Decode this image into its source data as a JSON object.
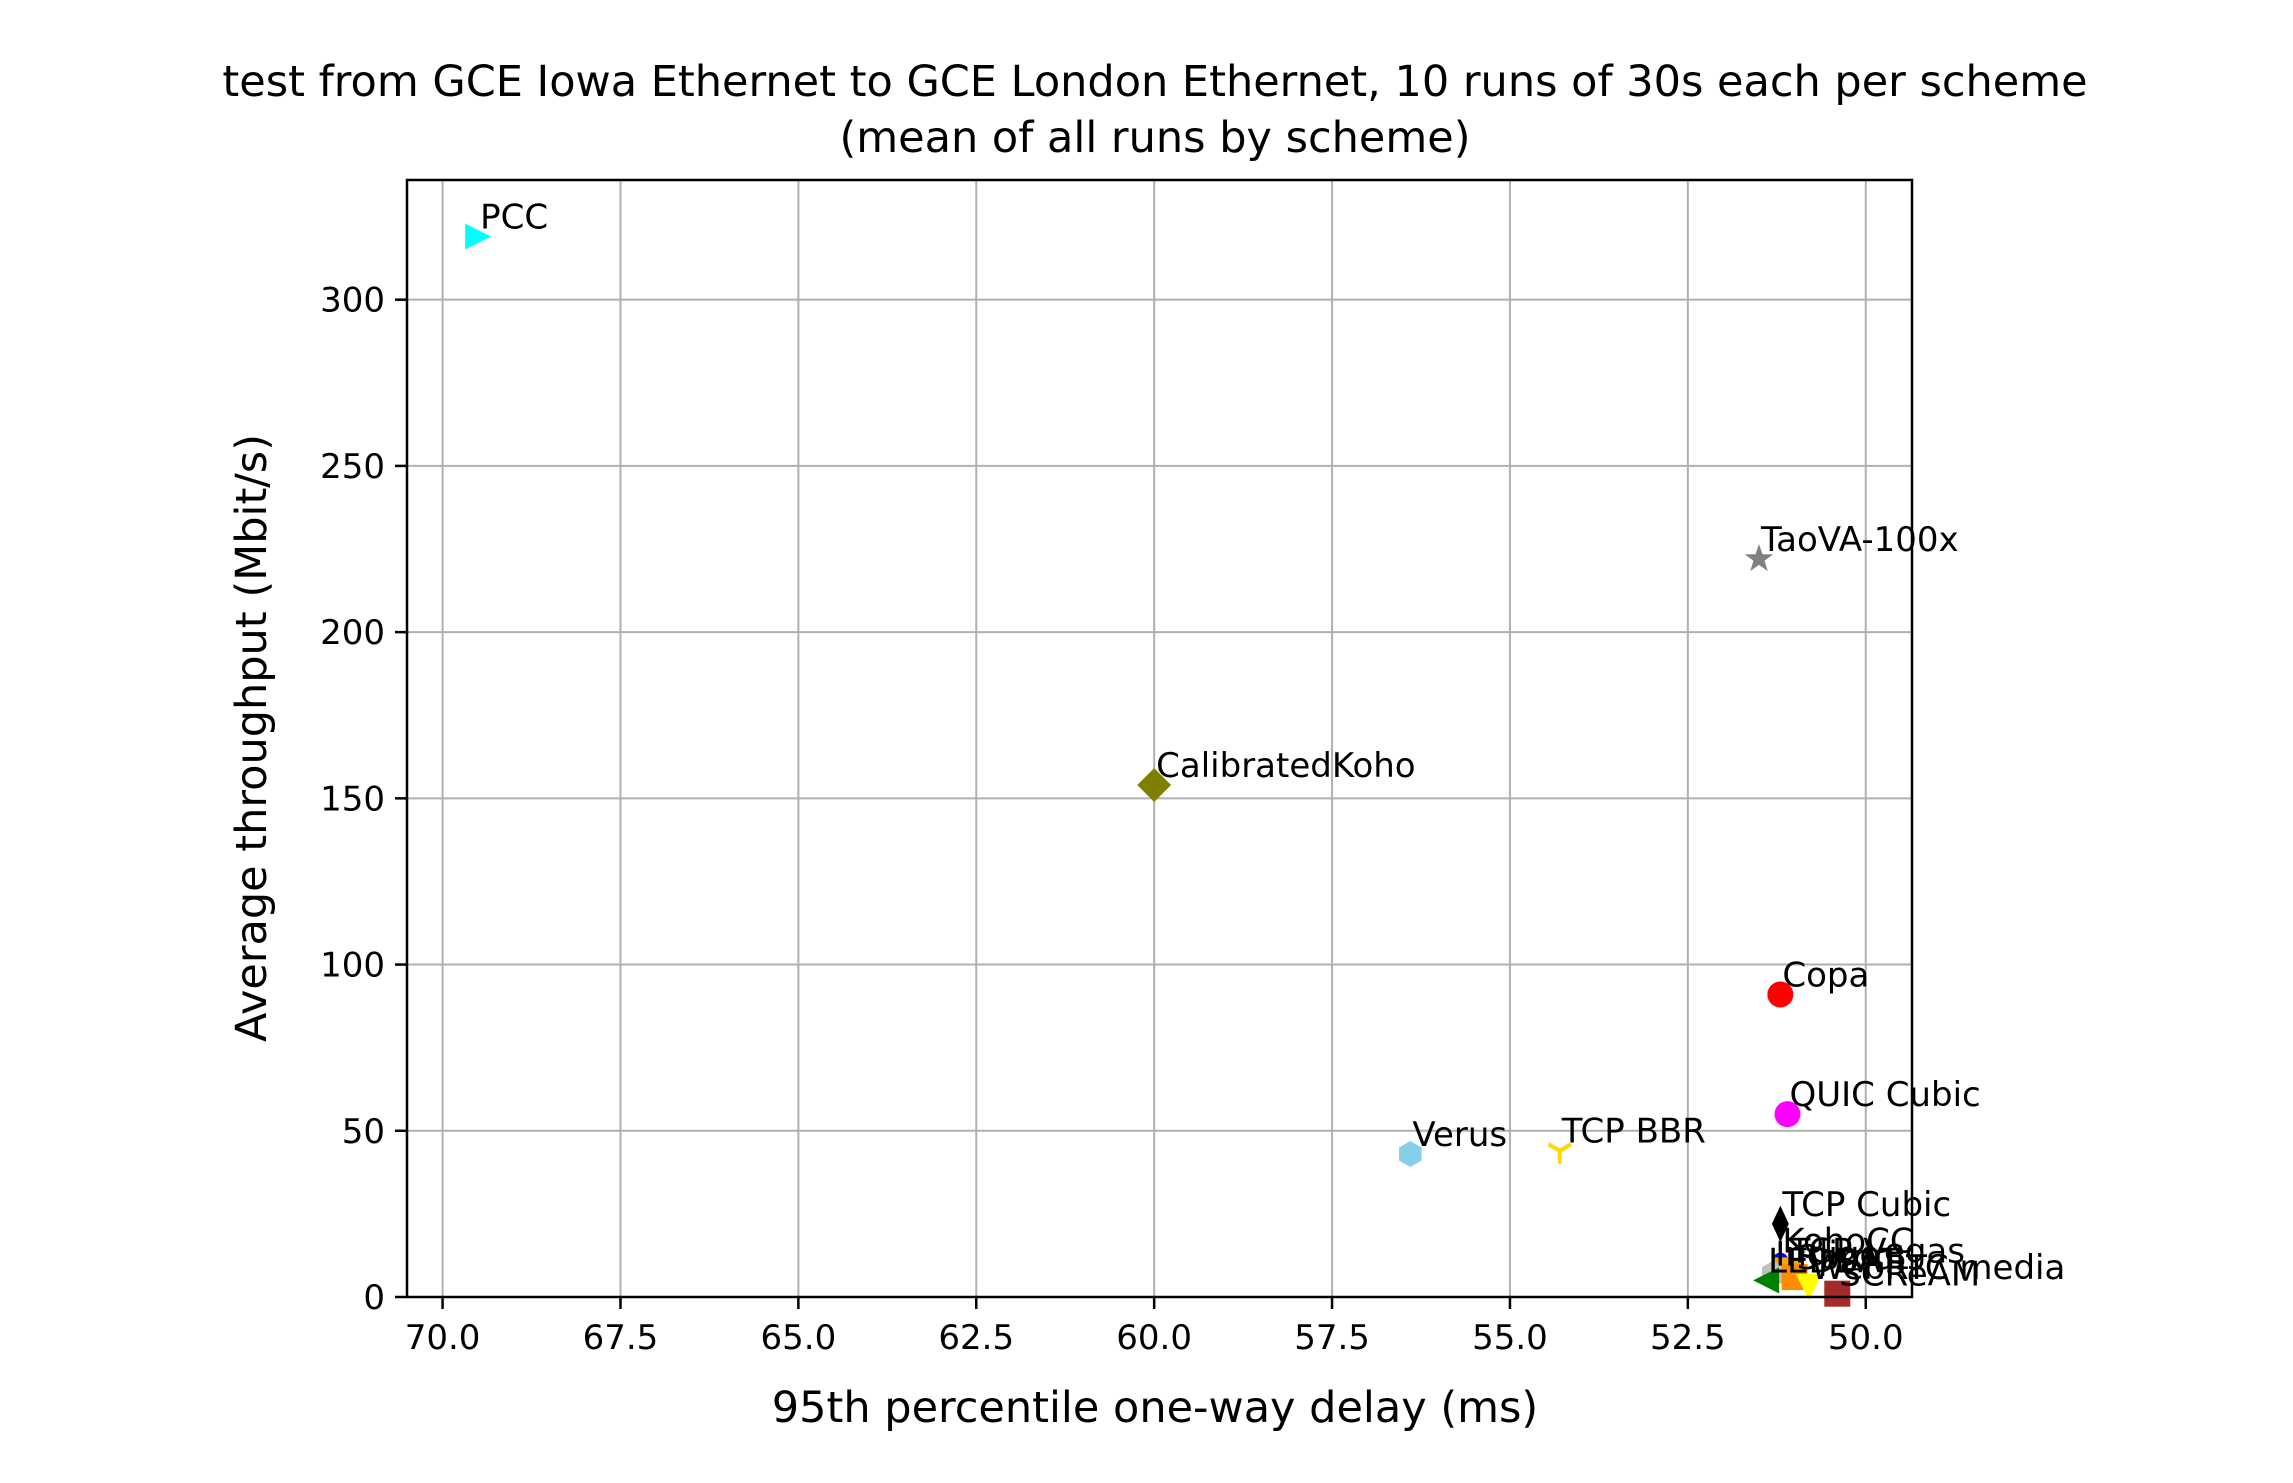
{
  "chart_data": {
    "type": "scatter",
    "title": "test from GCE Iowa Ethernet to GCE London Ethernet, 10 runs of 30s each per scheme",
    "subtitle": "(mean of all runs by scheme)",
    "xlabel": "95th percentile one-way delay (ms)",
    "ylabel": "Average throughput (Mbit/s)",
    "x_reversed": true,
    "xlim": [
      70.5,
      49.35
    ],
    "ylim": [
      0,
      336
    ],
    "x_ticks": [
      "70.0",
      "67.5",
      "65.0",
      "62.5",
      "60.0",
      "57.5",
      "55.0",
      "52.5",
      "50.0"
    ],
    "y_ticks": [
      "0",
      "50",
      "100",
      "150",
      "200",
      "250",
      "300"
    ],
    "grid": true,
    "series": [
      {
        "name": "PCC",
        "x": 69.5,
        "y": 319,
        "marker": "triangle-right",
        "color": "#00ffff"
      },
      {
        "name": "TaoVA-100x",
        "x": 51.5,
        "y": 222,
        "marker": "star",
        "color": "#808080"
      },
      {
        "name": "CalibratedKoho",
        "x": 60.0,
        "y": 154,
        "marker": "diamond",
        "color": "#808000"
      },
      {
        "name": "Copa",
        "x": 51.2,
        "y": 91,
        "marker": "circle",
        "color": "#ff0000"
      },
      {
        "name": "QUIC Cubic",
        "x": 51.1,
        "y": 55,
        "marker": "circle",
        "color": "#ff00ff"
      },
      {
        "name": "Verus",
        "x": 56.4,
        "y": 43,
        "marker": "hexagon",
        "color": "#87ceeb"
      },
      {
        "name": "TCP BBR",
        "x": 54.3,
        "y": 44,
        "marker": "tri-down",
        "color": "#ffd700"
      },
      {
        "name": "TCP Cubic",
        "x": 51.2,
        "y": 22,
        "marker": "thin-diamond",
        "color": "#000000"
      },
      {
        "name": "KohoCC",
        "x": 51.2,
        "y": 11,
        "marker": "point",
        "color": "#0000ff"
      },
      {
        "name": "TCP Vegas",
        "x": 51.1,
        "y": 8,
        "marker": "square",
        "color": "#ffa500"
      },
      {
        "name": "Indigo",
        "x": 51.3,
        "y": 7,
        "marker": "hexagon",
        "color": "#c0c0c0"
      },
      {
        "name": "LEDBAT",
        "x": 51.4,
        "y": 5,
        "marker": "triangle-left",
        "color": "#008000"
      },
      {
        "name": "Sprout",
        "x": 51.0,
        "y": 6,
        "marker": "square",
        "color": "#ff8c00"
      },
      {
        "name": "WebRTC media",
        "x": 50.8,
        "y": 3,
        "marker": "triangle-down",
        "color": "#ffff00"
      },
      {
        "name": "SCReAM",
        "x": 50.4,
        "y": 1,
        "marker": "square",
        "color": "#a52a2a"
      }
    ]
  }
}
